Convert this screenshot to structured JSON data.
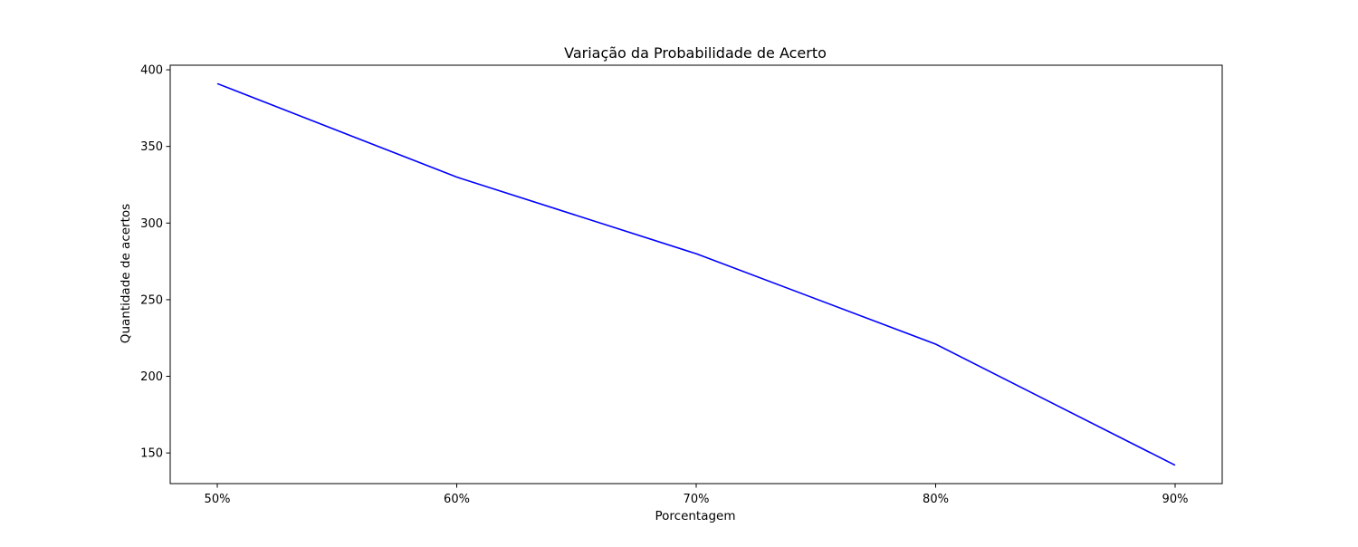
{
  "chart_data": {
    "type": "line",
    "title": "Variação da Probabilidade de Acerto",
    "xlabel": "Porcentagem",
    "ylabel": "Quantidade de acertos",
    "categories": [
      "50%",
      "60%",
      "70%",
      "80%",
      "90%"
    ],
    "series": [
      {
        "values": [
          391,
          330,
          280,
          221,
          142
        ],
        "color": "#0000ff"
      }
    ],
    "ylim": [
      130,
      403
    ],
    "yticks": [
      150,
      200,
      250,
      300,
      350,
      400
    ],
    "grid": false,
    "legend": "none"
  }
}
